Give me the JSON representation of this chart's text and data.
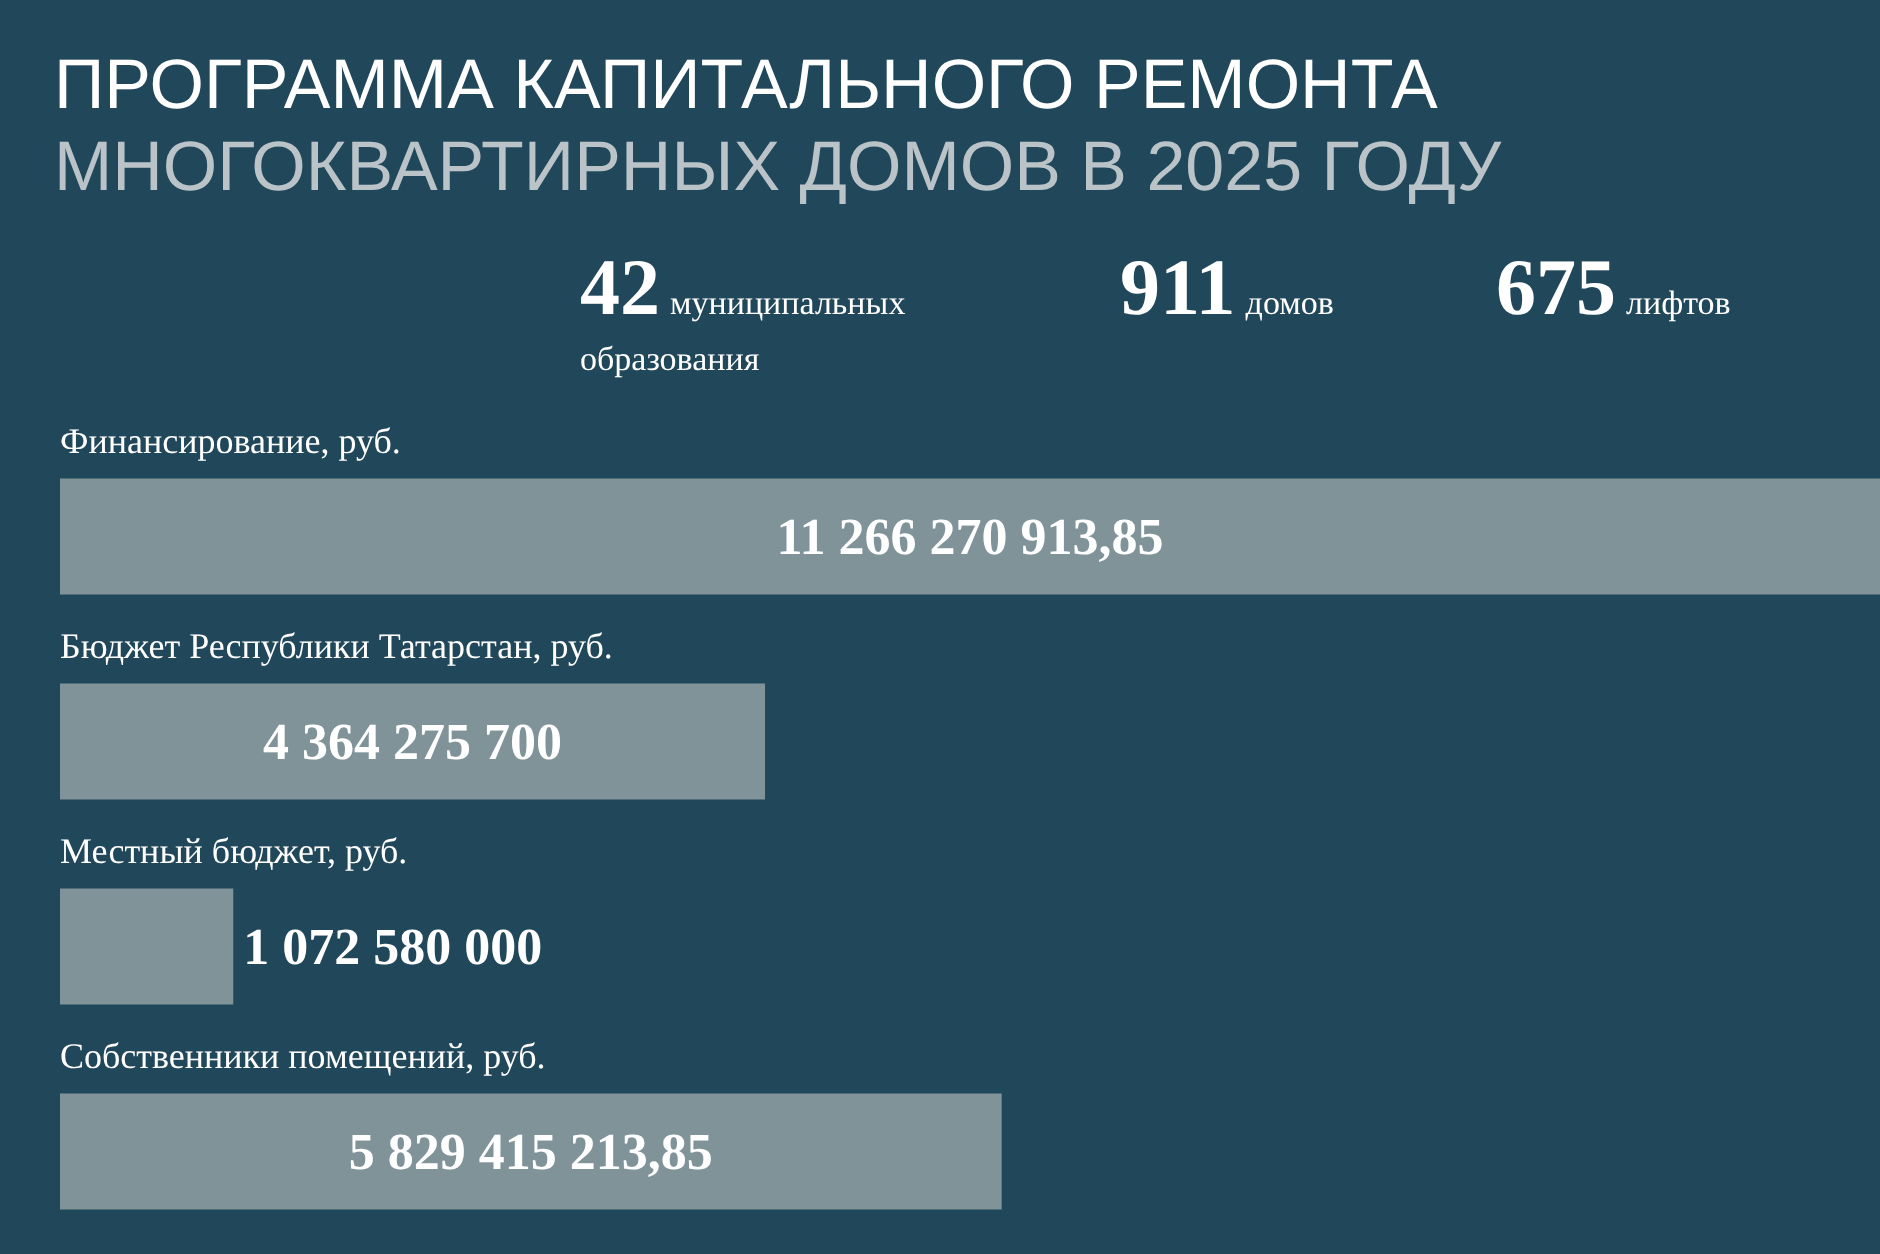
{
  "chart_data": {
    "type": "bar",
    "orientation": "horizontal",
    "title": "ПРОГРАММА КАПИТАЛЬНОГО РЕМОНТА",
    "subtitle": "МНОГОКВАРТИРНЫХ ДОМОВ В 2025 ГОДУ",
    "annotations": [
      "42",
      "муниципальных образования",
      "911",
      "домов",
      "675",
      "лифтов"
    ],
    "categories": [
      "Финансирование, руб.",
      "Бюджет Республики Татарстан, руб.",
      "Местный бюджет, руб.",
      "Собственники помещений, руб."
    ],
    "values": [
      11266270913.85,
      4364275700,
      1072580000,
      5829415213.85
    ],
    "value_labels": [
      "11 266 270 913,85",
      "4 364 275 700",
      "1 072 580 000",
      "5 829 415 213,85"
    ],
    "color": "#7f9399",
    "tick_labels": "y"
  }
}
